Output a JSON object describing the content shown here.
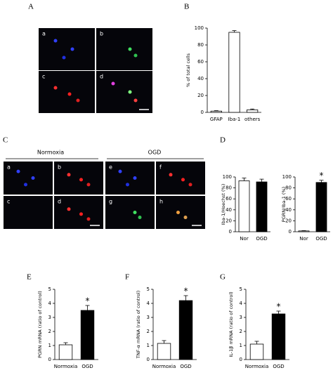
{
  "images": [
    {
      "label": "A",
      "tiles": [
        "a",
        "b",
        "c",
        "d"
      ]
    },
    {
      "label": "C",
      "groups": [
        "Normoxia",
        "OGD"
      ],
      "tiles": [
        "a",
        "b",
        "c",
        "d",
        "e",
        "f",
        "g",
        "h"
      ]
    }
  ],
  "chart_data": [
    {
      "type": "bar",
      "label": "B",
      "y_label": "% of total cells",
      "categories": [
        "GFAP",
        "Iba-1",
        "others"
      ],
      "values": [
        1.5,
        95,
        3
      ],
      "errors": [
        0.5,
        2,
        1
      ],
      "colors": [
        "#ffffff",
        "#ffffff",
        "#ffffff"
      ],
      "ylim": [
        0,
        100
      ],
      "yticks": [
        0,
        20,
        40,
        60,
        80,
        100
      ]
    },
    {
      "type": "bar",
      "label": "D",
      "y_label": "Iba-1/Hoechst (%)",
      "categories": [
        "Nor",
        "OGD"
      ],
      "values": [
        93,
        91
      ],
      "errors": [
        5,
        5
      ],
      "colors": [
        "#ffffff",
        "#000000"
      ],
      "ylim": [
        0,
        100
      ],
      "yticks": [
        0,
        20,
        40,
        60,
        80,
        100
      ]
    },
    {
      "type": "bar",
      "y_label": "PGRN/Iba-1 (%)",
      "categories": [
        "Nor",
        "OGD"
      ],
      "values": [
        1.5,
        90
      ],
      "errors": [
        0.5,
        4
      ],
      "colors": [
        "#ffffff",
        "#000000"
      ],
      "significance": [
        null,
        "*"
      ],
      "ylim": [
        0,
        100
      ],
      "yticks": [
        0,
        20,
        40,
        60,
        80,
        100
      ]
    },
    {
      "type": "bar",
      "label": "E",
      "y_label": "PGRN mRNA (ratio of control)",
      "categories": [
        "Normoxia",
        "OGD"
      ],
      "values": [
        1.05,
        3.5
      ],
      "errors": [
        0.15,
        0.35
      ],
      "colors": [
        "#ffffff",
        "#000000"
      ],
      "significance": [
        null,
        "*"
      ],
      "ylim": [
        0,
        5
      ],
      "yticks": [
        0,
        1,
        2,
        3,
        4,
        5
      ]
    },
    {
      "type": "bar",
      "label": "F",
      "y_label": "TNF-α mRNA (ratio of control)",
      "categories": [
        "Normoxia",
        "OGD"
      ],
      "values": [
        1.15,
        4.2
      ],
      "errors": [
        0.2,
        0.35
      ],
      "colors": [
        "#ffffff",
        "#000000"
      ],
      "significance": [
        null,
        "*"
      ],
      "ylim": [
        0,
        5
      ],
      "yticks": [
        0,
        1,
        2,
        3,
        4,
        5
      ]
    },
    {
      "type": "bar",
      "label": "G",
      "y_label": "IL-1β mRNA (ratio of control)",
      "categories": [
        "Normoxia",
        "OGD"
      ],
      "values": [
        1.1,
        3.25
      ],
      "errors": [
        0.2,
        0.2
      ],
      "colors": [
        "#ffffff",
        "#000000"
      ],
      "significance": [
        null,
        "*"
      ],
      "ylim": [
        0,
        5
      ],
      "yticks": [
        0,
        1,
        2,
        3,
        4,
        5
      ]
    }
  ]
}
